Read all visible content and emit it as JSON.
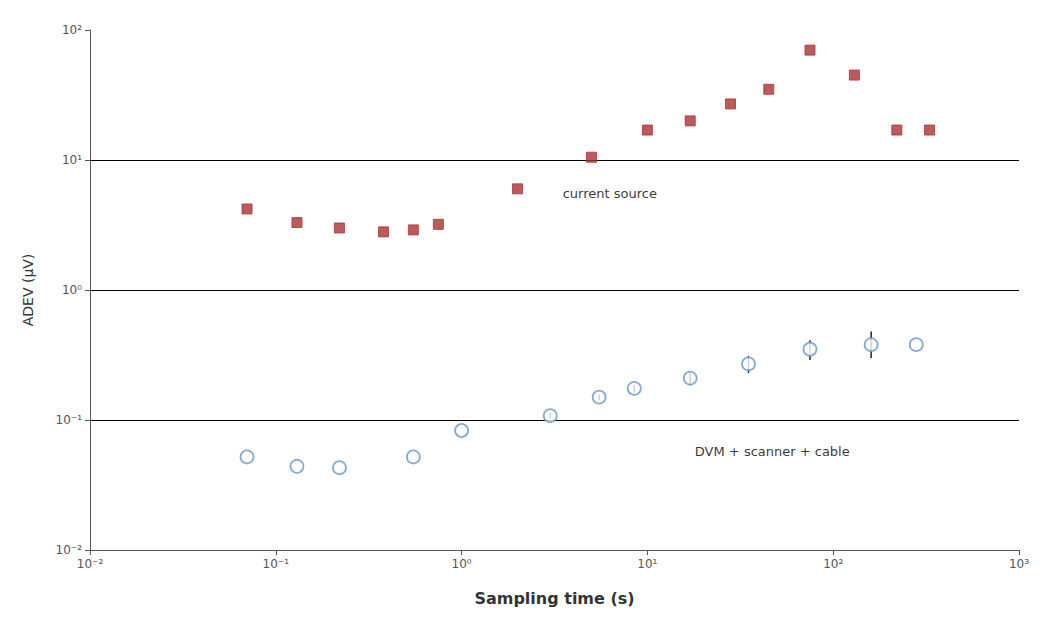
{
  "chart_data": {
    "type": "scatter",
    "xlabel": "Sampling time (s)",
    "ylabel": "ADEV (μV)",
    "log": true,
    "grid": false,
    "xlim": [
      0.01,
      1000
    ],
    "ylim": [
      0.01,
      100
    ],
    "xticks": [
      {
        "value": 0.01,
        "label": "10⁻²"
      },
      {
        "value": 0.1,
        "label": "10⁻¹"
      },
      {
        "value": 1,
        "label": "10⁰"
      },
      {
        "value": 10,
        "label": "10¹"
      },
      {
        "value": 100,
        "label": "10²"
      },
      {
        "value": 1000,
        "label": "10³"
      }
    ],
    "yticks": [
      {
        "value": 0.01,
        "label": "10⁻²"
      },
      {
        "value": 0.1,
        "label": "10⁻¹"
      },
      {
        "value": 1,
        "label": "10⁰"
      },
      {
        "value": 10,
        "label": "10¹"
      },
      {
        "value": 100,
        "label": "10²"
      }
    ],
    "series": [
      {
        "color": "#aa3333",
        "marker": "square",
        "x": [
          0.07,
          0.13,
          0.22,
          0.38,
          0.55,
          0.75,
          2.0,
          5.0,
          10,
          17,
          28,
          45,
          75,
          130,
          220,
          330
        ],
        "values": [
          4.2,
          3.3,
          3.0,
          2.8,
          2.9,
          3.2,
          6.0,
          10.5,
          17,
          20,
          27,
          35,
          70,
          45,
          17,
          17
        ]
      },
      {
        "color": "#6699cc",
        "marker": "circle",
        "x": [
          0.07,
          0.13,
          0.22,
          0.55,
          1.0,
          3.0,
          5.5,
          8.5,
          17,
          35,
          75,
          160,
          280
        ],
        "values": [
          0.052,
          0.044,
          0.043,
          0.052,
          0.083,
          0.108,
          0.15,
          0.175,
          0.21,
          0.27,
          0.35,
          0.38,
          0.38
        ],
        "yerr_low": [
          0.0,
          0.0,
          0.0,
          0.0,
          0.0,
          0.005,
          0.008,
          0.012,
          0.025,
          0.04,
          0.06,
          0.08,
          0.0
        ],
        "yerr_high": [
          0.0,
          0.0,
          0.0,
          0.0,
          0.0,
          0.005,
          0.008,
          0.012,
          0.025,
          0.04,
          0.06,
          0.1,
          0.0
        ]
      }
    ],
    "hlines": [
      0.1,
      1.0,
      10.0
    ],
    "annotations": [
      {
        "text": "current source",
        "x": 3.5,
        "y": 5.5
      },
      {
        "text": "DVM + scanner + cable",
        "x": 18,
        "y": 0.057
      }
    ]
  }
}
